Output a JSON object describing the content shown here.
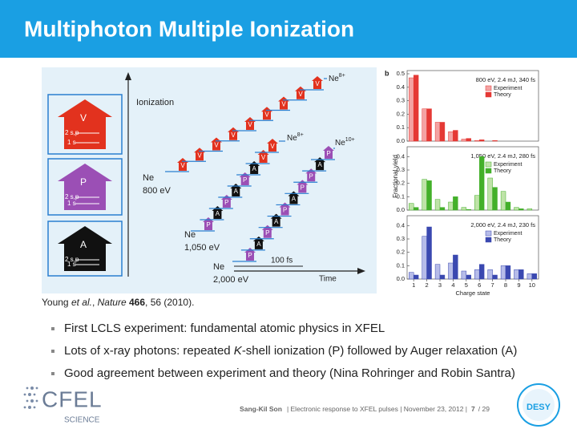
{
  "header": {
    "title": "Multiphoton Multiple Ionization"
  },
  "diagram": {
    "axis_y": "Ionization",
    "axis_x": "Time",
    "scale": "100 fs",
    "letter_colors": {
      "V": "#e2321e",
      "P": "#9b4fb5",
      "A": "#111111"
    },
    "icons": [
      {
        "letter": "V",
        "outer": "2 s,p",
        "inner": "1 s"
      },
      {
        "letter": "P",
        "outer": "2 s,p",
        "inner": "1 s"
      },
      {
        "letter": "A",
        "outer": "2 s,p",
        "inner": "1 s"
      }
    ],
    "ladders": [
      {
        "start": "Ne",
        "energy": "800 eV",
        "end": {
          "text": "Ne",
          "sup": "8+"
        },
        "letters": [
          "V",
          "V",
          "V",
          "V",
          "V",
          "V",
          "V",
          "V",
          "V"
        ]
      },
      {
        "start": "Ne",
        "energy": "1,050 eV",
        "end": {
          "text": "Ne",
          "sup": "8+"
        },
        "letters": [
          "P",
          "A",
          "P",
          "A",
          "P",
          "A",
          "V",
          "V"
        ]
      },
      {
        "start": "Ne",
        "energy": "2,000 eV",
        "end": {
          "text": "Ne",
          "sup": "10+"
        },
        "letters": [
          "P",
          "A",
          "P",
          "A",
          "P",
          "A",
          "P",
          "P",
          "A",
          "P"
        ]
      }
    ]
  },
  "panel_label": "b",
  "ylabel": "Fractional yield",
  "chart_data": [
    {
      "type": "bar",
      "title": "800 eV, 2.4 mJ, 340 fs",
      "ylim": [
        0,
        0.5
      ],
      "yticks": [
        {
          "value": 0,
          "label": "0.0"
        },
        0.1,
        0.2,
        0.3,
        0.4,
        0.5
      ],
      "series": [
        {
          "name": "Experiment",
          "color": "#f4a3a3",
          "values": [
            0.47,
            0.24,
            0.14,
            0.07,
            0.015,
            0.005,
            0,
            0,
            0,
            0
          ]
        },
        {
          "name": "Theory",
          "color": "#e53935",
          "values": [
            0.49,
            0.24,
            0.14,
            0.08,
            0.02,
            0.01,
            0.005,
            0,
            0,
            0
          ]
        }
      ]
    },
    {
      "type": "bar",
      "title": "1,050 eV, 2.4 mJ, 280 fs",
      "ylim": [
        0,
        0.45
      ],
      "yticks": [
        {
          "value": 0,
          "label": "0.0"
        },
        0.1,
        0.2,
        0.3,
        0.4
      ],
      "series": [
        {
          "name": "Experiment",
          "color": "#bfe3a8",
          "values": [
            0.05,
            0.23,
            0.08,
            0.06,
            0.02,
            0.11,
            0.24,
            0.14,
            0.02,
            0.01
          ]
        },
        {
          "name": "Theory",
          "color": "#43b02a",
          "values": [
            0.02,
            0.22,
            0.02,
            0.1,
            0.005,
            0.4,
            0.17,
            0.06,
            0.01,
            0
          ]
        }
      ]
    },
    {
      "type": "bar",
      "title": "2,000 eV, 2.4 mJ, 230 fs",
      "ylim": [
        0,
        0.45
      ],
      "yticks": [
        {
          "value": 0,
          "label": "0.0"
        },
        0.1,
        0.2,
        0.3,
        0.4
      ],
      "categories": [
        "1",
        "2",
        "3",
        "4",
        "5",
        "6",
        "7",
        "8",
        "9",
        "10"
      ],
      "xlabel": "Charge state",
      "series": [
        {
          "name": "Experiment",
          "color": "#b6bce9",
          "values": [
            0.05,
            0.32,
            0.11,
            0.12,
            0.06,
            0.07,
            0.07,
            0.1,
            0.07,
            0.04
          ]
        },
        {
          "name": "Theory",
          "color": "#3a48b0",
          "values": [
            0.03,
            0.39,
            0.03,
            0.18,
            0.03,
            0.11,
            0.03,
            0.1,
            0.07,
            0.04
          ]
        }
      ]
    }
  ],
  "citation": [
    "Young ",
    "et al.",
    ", ",
    "Nature",
    " ",
    "466",
    ", 56 (2010)."
  ],
  "bullets": [
    [
      "First LCLS experiment: fundamental atomic physics in XFEL"
    ],
    [
      "Lots of x-ray photons: repeated ",
      "K",
      "-shell ionization (P) followed by Auger relaxation (A)"
    ],
    [
      "Good agreement between experiment and theory (Nina Rohringer and Robin Santra)"
    ]
  ],
  "footer": {
    "author": "Sang-Kil Son",
    "info": "| Electronic response to XFEL pulses | November 23, 2012 |",
    "page": "7",
    "total": "/ 29"
  },
  "logos": {
    "left": "CFEL",
    "left_sub": "SCIENCE",
    "right": "DESY"
  }
}
